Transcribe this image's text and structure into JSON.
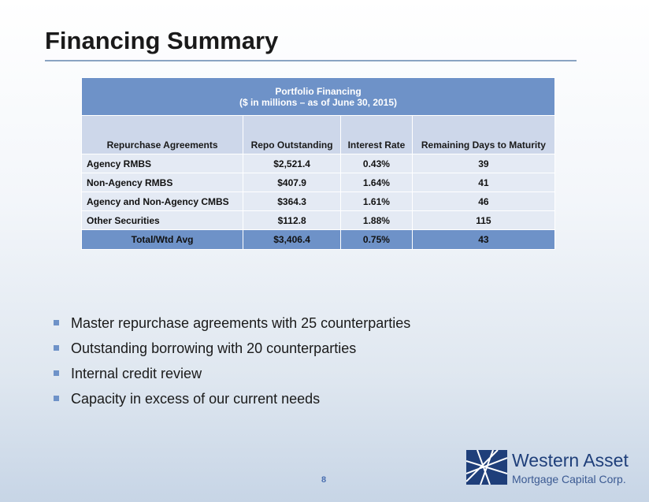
{
  "title": "Financing Summary",
  "table": {
    "caption": [
      "Portfolio Financing",
      "($ in millions – as of  June 30, 2015)"
    ],
    "columns": [
      "Repurchase Agreements",
      "Repo Outstanding",
      "Interest Rate",
      "Remaining Days to Maturity"
    ],
    "rows": [
      [
        "Agency RMBS",
        "$2,521.4",
        "0.43%",
        "39"
      ],
      [
        "Non-Agency RMBS",
        "$407.9",
        "1.64%",
        "41"
      ],
      [
        "Agency and Non-Agency CMBS",
        "$364.3",
        "1.61%",
        "46"
      ],
      [
        "Other Securities",
        "$112.8",
        "1.88%",
        "115"
      ]
    ],
    "total": [
      "Total/Wtd Avg",
      "$3,406.4",
      "0.75%",
      "43"
    ]
  },
  "bullets": [
    "Master repurchase agreements with 25 counterparties",
    "Outstanding borrowing with 20 counterparties",
    "Internal credit review",
    "Capacity in excess of our current needs"
  ],
  "page_number": "8",
  "logo": [
    "Western Asset",
    "Mortgage Capital Corp."
  ]
}
